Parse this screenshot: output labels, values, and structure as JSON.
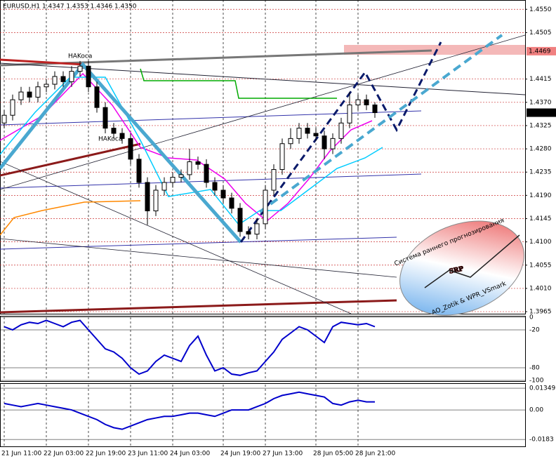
{
  "chart_data": [
    {
      "type": "candlestick",
      "title": "EURUSD,H1 1.4347 1.4353 1.4346 1.4350",
      "annotations": [
        "HAKoca",
        "HAKoca"
      ],
      "logo": {
        "caption": "Система раннего прогнозирования",
        "mark": "SRP",
        "authors": "AO_Zotik & WPR_VSmark"
      },
      "categories": [
        "21 Jun 11:00",
        null,
        null,
        null,
        null,
        "22 Jun 03:00",
        null,
        null,
        null,
        null,
        "22 Jun 19:00",
        null,
        null,
        null,
        null,
        "23 Jun 11:00",
        null,
        null,
        null,
        null,
        "24 Jun 03:00",
        null,
        null,
        null,
        null,
        null,
        "24 Jun 19:00",
        null,
        null,
        null,
        null,
        "27 Jun 13:00",
        null,
        null,
        null,
        null,
        null,
        "28 Jun 05:00",
        null,
        null,
        null,
        null,
        "28 Jun 21:00",
        null,
        null
      ],
      "open": [
        1.433,
        1.4345,
        1.4375,
        1.439,
        1.438,
        1.44,
        1.4405,
        1.442,
        1.441,
        1.443,
        1.444,
        1.44,
        1.436,
        1.432,
        1.431,
        1.43,
        1.426,
        1.4215,
        1.416,
        1.42,
        1.4215,
        1.4225,
        1.423,
        1.4255,
        1.425,
        1.4215,
        1.42,
        1.4185,
        1.4165,
        1.412,
        1.4115,
        1.4135,
        1.42,
        1.424,
        1.429,
        1.43,
        1.432,
        1.431,
        1.4305,
        1.428,
        1.43,
        1.433,
        1.4365,
        1.4375,
        1.4365
      ],
      "high": [
        1.4355,
        1.4385,
        1.44,
        1.44,
        1.441,
        1.4415,
        1.443,
        1.443,
        1.444,
        1.445,
        1.445,
        1.441,
        1.437,
        1.433,
        1.432,
        1.431,
        1.427,
        1.4225,
        1.421,
        1.4225,
        1.4235,
        1.424,
        1.428,
        1.4265,
        1.426,
        1.4225,
        1.421,
        1.4195,
        1.4175,
        1.413,
        1.4145,
        1.421,
        1.425,
        1.43,
        1.432,
        1.433,
        1.433,
        1.432,
        1.4315,
        1.431,
        1.434,
        1.439,
        1.4385,
        1.4385,
        1.437
      ],
      "low": [
        1.432,
        1.4335,
        1.4365,
        1.437,
        1.437,
        1.439,
        1.4395,
        1.44,
        1.44,
        1.442,
        1.439,
        1.435,
        1.431,
        1.43,
        1.429,
        1.425,
        1.4205,
        1.4133,
        1.415,
        1.419,
        1.4205,
        1.4215,
        1.422,
        1.424,
        1.4205,
        1.419,
        1.4175,
        1.4155,
        1.411,
        1.4105,
        1.4105,
        1.4125,
        1.419,
        1.423,
        1.428,
        1.429,
        1.43,
        1.4295,
        1.426,
        1.427,
        1.429,
        1.432,
        1.4355,
        1.4355,
        1.434
      ],
      "close": [
        1.4345,
        1.4375,
        1.439,
        1.438,
        1.44,
        1.4405,
        1.442,
        1.441,
        1.443,
        1.444,
        1.44,
        1.436,
        1.432,
        1.431,
        1.43,
        1.426,
        1.4215,
        1.416,
        1.42,
        1.4215,
        1.4225,
        1.423,
        1.4255,
        1.425,
        1.4215,
        1.42,
        1.4185,
        1.4165,
        1.412,
        1.4115,
        1.4135,
        1.42,
        1.424,
        1.429,
        1.43,
        1.432,
        1.431,
        1.4305,
        1.428,
        1.43,
        1.433,
        1.4365,
        1.4375,
        1.4365,
        1.435
      ],
      "ylim": [
        1.3961,
        1.4568
      ],
      "yticks": [
        {
          "value": 1.455,
          "label": "1.4550"
        },
        {
          "value": 1.4505,
          "label": "1.4505"
        },
        {
          "value": 1.4415,
          "label": "1.4415"
        },
        {
          "value": 1.437,
          "label": "1.4370"
        },
        {
          "value": 1.4325,
          "label": "1.4325"
        },
        {
          "value": 1.428,
          "label": "1.4280"
        },
        {
          "value": 1.4235,
          "label": "1.4235"
        },
        {
          "value": 1.419,
          "label": "1.4190"
        },
        {
          "value": 1.4145,
          "label": "1.4145"
        },
        {
          "value": 1.41,
          "label": "1.4100"
        },
        {
          "value": 1.4055,
          "label": "1.4055"
        },
        {
          "value": 1.401,
          "label": "1.4010"
        },
        {
          "value": 1.3965,
          "label": "1.3965"
        }
      ],
      "level_labels": [
        {
          "value": 1.4469,
          "label": "1.4469",
          "color": "#f08080"
        },
        {
          "value": 1.435,
          "label": "1.4350",
          "color": "#000000"
        }
      ],
      "grid": true
    },
    {
      "type": "line",
      "ylim": [
        -100,
        0
      ],
      "yticks": [
        0,
        -20,
        -80,
        -100
      ],
      "series": [
        {
          "color": "#0000cc",
          "values": [
            -15,
            -20,
            -12,
            -8,
            -10,
            -5,
            -10,
            -15,
            -8,
            -5,
            -20,
            -35,
            -50,
            -55,
            -65,
            -80,
            -90,
            -85,
            -70,
            -60,
            -65,
            -70,
            -45,
            -30,
            -60,
            -85,
            -80,
            -90,
            -92,
            -88,
            -85,
            -70,
            -55,
            -35,
            -25,
            -15,
            -20,
            -30,
            -40,
            -15,
            -8,
            -10,
            -12,
            -10,
            -15
          ]
        }
      ]
    },
    {
      "type": "line",
      "ylim": [
        -0.0226,
        0.0157
      ],
      "yticks": [
        {
          "value": 0.01349,
          "label": "0.01349"
        },
        {
          "value": 0,
          "label": "0.00"
        },
        {
          "value": -0.0183,
          "label": "-0.0183"
        }
      ],
      "series": [
        {
          "color": "#0000cc",
          "values": [
            0.004,
            0.003,
            0.002,
            0.003,
            0.004,
            0.003,
            0.002,
            0.001,
            0.0,
            -0.002,
            -0.004,
            -0.006,
            -0.009,
            -0.011,
            -0.012,
            -0.01,
            -0.008,
            -0.006,
            -0.005,
            -0.004,
            -0.004,
            -0.003,
            -0.002,
            -0.002,
            -0.003,
            -0.004,
            -0.002,
            0.0,
            0.0,
            0.0,
            0.002,
            0.004,
            0.007,
            0.009,
            0.01,
            0.011,
            0.01,
            0.009,
            0.008,
            0.004,
            0.003,
            0.005,
            0.006,
            0.005,
            0.005
          ]
        }
      ]
    }
  ]
}
